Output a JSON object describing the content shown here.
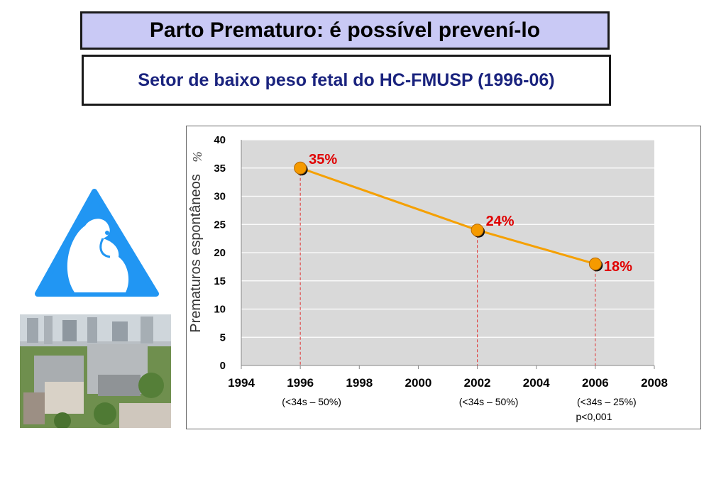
{
  "header": {
    "title": "Parto Prematuro: é possível prevení-lo",
    "subtitle": "Setor de baixo peso fetal do HC-FMUSP (1996-06)"
  },
  "colors": {
    "title_bg": "#c9c9f5",
    "subtitle_text": "#1a237e",
    "logo_blue": "#2196f3",
    "line": "#f5a000",
    "marker": "#f59a00",
    "data_label": "#e00000",
    "drop_line": "#e03030",
    "plot_bg": "#d9d9d9"
  },
  "chart_data": {
    "type": "line",
    "ylabel": "Prematuros espontâneos",
    "yunit": "%",
    "xlim": [
      1994,
      2008
    ],
    "ylim": [
      0,
      40
    ],
    "x_ticks": [
      1994,
      1996,
      1998,
      2000,
      2002,
      2004,
      2006,
      2008
    ],
    "y_ticks": [
      0,
      5,
      10,
      15,
      20,
      25,
      30,
      35,
      40
    ],
    "grid": true,
    "points": [
      {
        "x": 1996,
        "y": 35,
        "label": "35%",
        "note": "(<34s – 50%)"
      },
      {
        "x": 2002,
        "y": 24,
        "label": "24%",
        "note": "(<34s – 50%)"
      },
      {
        "x": 2006,
        "y": 18,
        "label": "18%",
        "note": "(<34s – 25%)"
      }
    ],
    "annotation": "p<0,001"
  }
}
